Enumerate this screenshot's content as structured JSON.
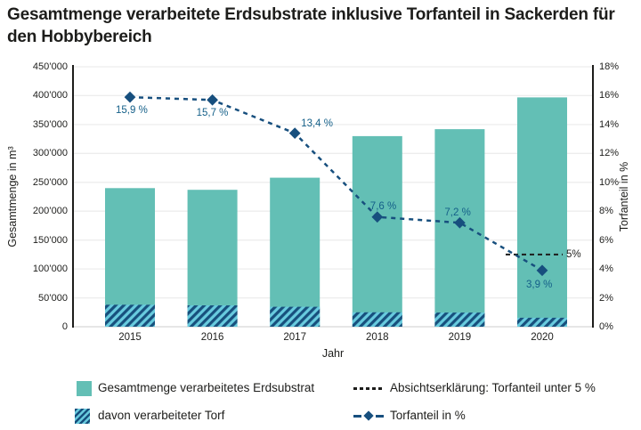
{
  "title": "Gesamtmenge verarbeitete Erdsubstrate inklusive Torfanteil in Sackerden für den Hobbybereich",
  "chart_data": {
    "type": "combo",
    "categories": [
      "2015",
      "2016",
      "2017",
      "2018",
      "2019",
      "2020"
    ],
    "xlabel": "Jahr",
    "ylabel_left": "Gesamtmenge in m³",
    "ylabel_right": "Torfanteil in %",
    "ylim_left": [
      0,
      450000
    ],
    "ylim_right": [
      0,
      18
    ],
    "y_left_tick_labels": [
      "0",
      "50’000",
      "100’000",
      "150’000",
      "200’000",
      "250’000",
      "300’000",
      "350’000",
      "400’000",
      "450’000"
    ],
    "y_right_tick_labels": [
      "0%",
      "2%",
      "4%",
      "6%",
      "8%",
      "10%",
      "12%",
      "14%",
      "16%",
      "18%"
    ],
    "grid": "horizontal",
    "legend_position": "bottom",
    "series": [
      {
        "name": "Gesamtmenge verarbeitetes Erdsubstrat",
        "type": "bar",
        "values": [
          240000,
          237000,
          258000,
          330000,
          342000,
          397000
        ]
      },
      {
        "name": "davon verarbeiteter Torf",
        "type": "bar-hatched",
        "values": [
          38000,
          37000,
          34500,
          25000,
          24500,
          15500
        ]
      },
      {
        "name": "Torfanteil in %",
        "type": "line",
        "axis": "right",
        "values": [
          15.9,
          15.7,
          13.4,
          7.6,
          7.2,
          3.9
        ],
        "point_labels": [
          "15,9 %",
          "15,7 %",
          "13,4 %",
          "7,6 %",
          "7,2 %",
          "3,9 %"
        ]
      },
      {
        "name": "Absichtserklärung: Torfanteil unter 5 %",
        "type": "reference-line",
        "axis": "right",
        "value": 5,
        "label": "5%"
      }
    ]
  },
  "legend": {
    "items": [
      {
        "label": "Gesamtmenge verarbeitetes Erdsubstrat",
        "swatch": "bar-teal"
      },
      {
        "label": "davon verarbeiteter Torf",
        "swatch": "bar-hatched"
      },
      {
        "label": "Absichtserklärung: Torfanteil unter 5 %",
        "swatch": "dashed-black"
      },
      {
        "label": "Torfanteil in %",
        "swatch": "dashed-diamond-blue"
      }
    ]
  },
  "colors": {
    "bar_teal": "#63bfb5",
    "hatch_light": "#68cbde",
    "line_navy": "#174f7e",
    "hatch_navy": "#17507d",
    "point_label_blue": "#156089",
    "text_dark": "#1d1d1b",
    "grid": "#ededed"
  }
}
